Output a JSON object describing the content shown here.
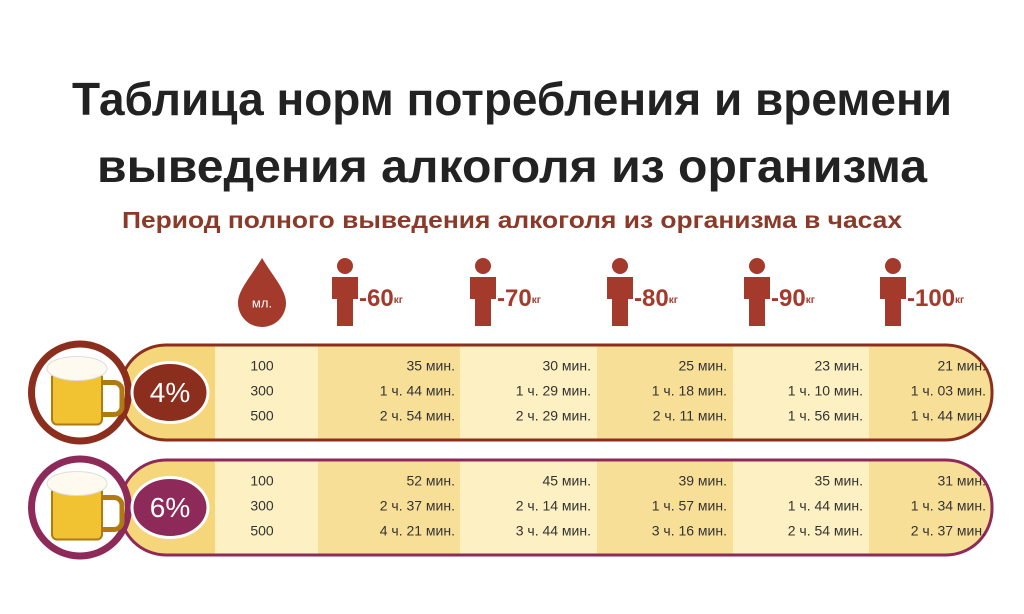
{
  "header": {
    "title_lines": [
      "Таблица норм потребления и времени",
      "выведения алкоголя из организма"
    ],
    "subtitle": "Период полного выведения алкоголя из организма в часах"
  },
  "table": {
    "volume_unit": "мл.",
    "weights": [
      {
        "number": "-60",
        "unit": "кг"
      },
      {
        "number": "-70",
        "unit": "кг"
      },
      {
        "number": "-80",
        "unit": "кг"
      },
      {
        "number": "-90",
        "unit": "кг"
      },
      {
        "number": "-100",
        "unit": "кг"
      }
    ],
    "sections": [
      {
        "strength": "4%",
        "rows": [
          [
            "100",
            "35 мин.",
            "30 мин.",
            "25 мин.",
            "23 мин.",
            "21 мин."
          ],
          [
            "300",
            "1 ч. 44 мин.",
            "1 ч. 29 мин.",
            "1 ч. 18 мин.",
            "1 ч. 10 мин.",
            "1 ч. 03 мин."
          ],
          [
            "500",
            "2 ч. 54 мин.",
            "2 ч. 29 мин.",
            "2 ч. 11 мин.",
            "1 ч. 56 мин.",
            "1 ч. 44 мин."
          ]
        ]
      },
      {
        "strength": "6%",
        "rows": [
          [
            "100",
            "52 мин.",
            "45 мин.",
            "39 мин.",
            "35 мин.",
            "31 мин."
          ],
          [
            "300",
            "2 ч. 37 мин.",
            "2 ч. 14 мин.",
            "1 ч. 57 мин.",
            "1 ч. 44 мин.",
            "1 ч. 34 мин."
          ],
          [
            "500",
            "4 ч. 21 мин.",
            "3 ч. 44 мин.",
            "3 ч. 16 мин.",
            "2 ч. 54 мин.",
            "2 ч. 37 мин."
          ]
        ]
      }
    ]
  }
}
